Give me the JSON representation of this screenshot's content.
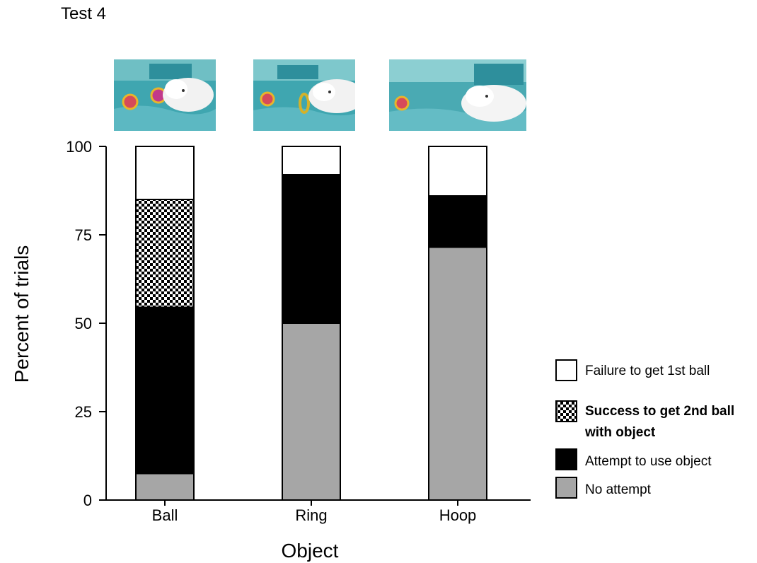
{
  "panel_label": "Test 4",
  "chart_data": {
    "type": "bar",
    "stacked": true,
    "categories": [
      "Ball",
      "Ring",
      "Hoop"
    ],
    "series": [
      {
        "name": "No attempt",
        "values": [
          7.5,
          50,
          71.5
        ],
        "color": "#a6a6a6",
        "pattern": "solid"
      },
      {
        "name": "Attempt to use object",
        "values": [
          47,
          42,
          14.5
        ],
        "color": "#000000",
        "pattern": "solid"
      },
      {
        "name": "Success to get 2nd ball with object",
        "values": [
          30.5,
          0,
          0
        ],
        "color": "#000000",
        "pattern": "checker"
      },
      {
        "name": "Failure to get 1st ball",
        "values": [
          15,
          8,
          14
        ],
        "color": "#ffffff",
        "pattern": "solid"
      }
    ],
    "xlabel": "Object",
    "ylabel": "Percent of trials",
    "ylim": [
      0,
      100
    ],
    "yticks": [
      0,
      25,
      50,
      75,
      100
    ],
    "legend_position": "right",
    "legend": [
      {
        "label": "Failure to get 1st ball",
        "series": 3,
        "bold": false
      },
      {
        "label_lines": [
          "Success to get 2nd ball",
          "with object"
        ],
        "series": 2,
        "bold": true
      },
      {
        "label": "Attempt to use object",
        "series": 1,
        "bold": false
      },
      {
        "label": "No attempt",
        "series": 0,
        "bold": false
      }
    ]
  },
  "photos": [
    "beluga-with-ball-photo",
    "beluga-with-ring-photo",
    "beluga-with-hoop-photo"
  ]
}
